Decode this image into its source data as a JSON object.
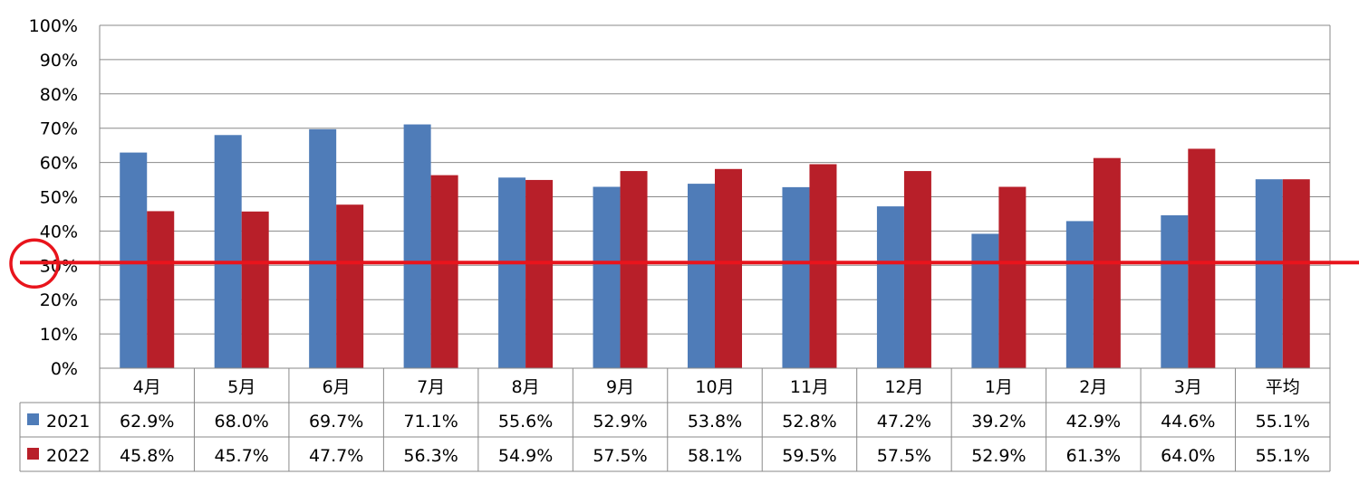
{
  "chart_data": {
    "type": "bar",
    "categories": [
      "4月",
      "5月",
      "6月",
      "7月",
      "8月",
      "9月",
      "10月",
      "11月",
      "12月",
      "1月",
      "2月",
      "3月",
      "平均"
    ],
    "series": [
      {
        "name": "2021",
        "color": "#4f7cb8",
        "values": [
          62.9,
          68.0,
          69.7,
          71.1,
          55.6,
          52.9,
          53.8,
          52.8,
          47.2,
          39.2,
          42.9,
          44.6,
          55.1
        ],
        "labels": [
          "62.9%",
          "68.0%",
          "69.7%",
          "71.1%",
          "55.6%",
          "52.9%",
          "53.8%",
          "52.8%",
          "47.2%",
          "39.2%",
          "42.9%",
          "44.6%",
          "55.1%"
        ]
      },
      {
        "name": "2022",
        "color": "#b81f29",
        "values": [
          45.8,
          45.7,
          47.7,
          56.3,
          54.9,
          57.5,
          58.1,
          59.5,
          57.5,
          52.9,
          61.3,
          64.0,
          55.1
        ],
        "labels": [
          "45.8%",
          "45.7%",
          "47.7%",
          "56.3%",
          "54.9%",
          "57.5%",
          "58.1%",
          "59.5%",
          "57.5%",
          "52.9%",
          "61.3%",
          "64.0%",
          "55.1%"
        ]
      }
    ],
    "yticks": [
      "0%",
      "10%",
      "20%",
      "30%",
      "40%",
      "50%",
      "60%",
      "70%",
      "80%",
      "90%",
      "100%"
    ],
    "ylim": [
      0,
      100
    ],
    "grid": true,
    "legend": "data-table",
    "reference_line": {
      "value": 30.8,
      "color": "#e8141c"
    },
    "highlight_circle": {
      "on_tick": "30%",
      "color": "#e8141c"
    }
  }
}
